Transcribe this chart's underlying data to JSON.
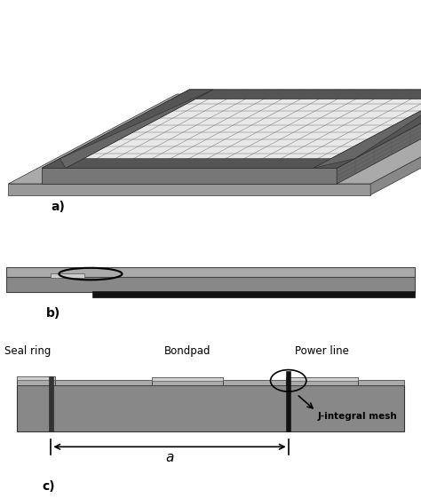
{
  "fig_width": 4.74,
  "fig_height": 5.61,
  "dpi": 100,
  "bg_color": "#ffffff",
  "label_a": "a)",
  "label_b": "b)",
  "label_c": "c)",
  "label_fontsize": 10,
  "seal_ring": "Seal ring",
  "bondpad": "Bondpad",
  "power_line": "Power line",
  "j_mesh": "J-integral mesh",
  "dim_a": "a",
  "c_dark": "#555555",
  "c_mid": "#888888",
  "c_light": "#aaaaaa",
  "c_lighter": "#cccccc",
  "c_black": "#111111",
  "c_white": "#ffffff"
}
